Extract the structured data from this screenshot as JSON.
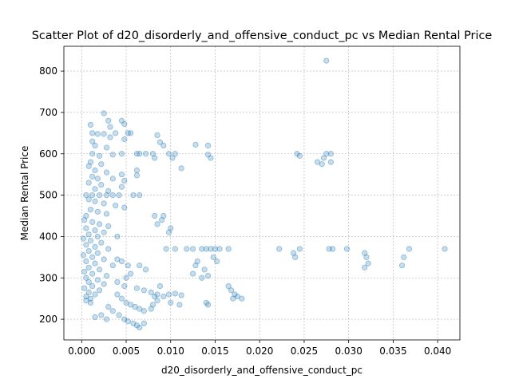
{
  "chart_data": {
    "type": "scatter",
    "title": "Scatter Plot of d20_disorderly_and_offensive_conduct_pc vs Median Rental Price",
    "xlabel": "d20_disorderly_and_offensive_conduct_pc",
    "ylabel": "Median Rental Price",
    "xlim": [
      -0.002,
      0.0425
    ],
    "ylim": [
      150,
      860
    ],
    "xticks": [
      0.0,
      0.005,
      0.01,
      0.015,
      0.02,
      0.025,
      0.03,
      0.035,
      0.04
    ],
    "xtick_labels": [
      "0.000",
      "0.005",
      "0.010",
      "0.015",
      "0.020",
      "0.025",
      "0.030",
      "0.035",
      "0.040"
    ],
    "yticks": [
      200,
      300,
      400,
      500,
      600,
      700,
      800
    ],
    "ytick_labels": [
      "200",
      "300",
      "400",
      "500",
      "600",
      "700",
      "800"
    ],
    "grid": true,
    "marker_color": "#1f77b4",
    "marker_alpha": 0.25,
    "points": [
      [
        0.0275,
        825
      ],
      [
        0.0025,
        698
      ],
      [
        0.003,
        680
      ],
      [
        0.0045,
        680
      ],
      [
        0.0048,
        672
      ],
      [
        0.001,
        670
      ],
      [
        0.0032,
        665
      ],
      [
        0.0012,
        650
      ],
      [
        0.0018,
        648
      ],
      [
        0.0025,
        648
      ],
      [
        0.0038,
        650
      ],
      [
        0.0052,
        650
      ],
      [
        0.0055,
        650
      ],
      [
        0.0085,
        645
      ],
      [
        0.0032,
        640
      ],
      [
        0.0048,
        635
      ],
      [
        0.0012,
        630
      ],
      [
        0.0088,
        628
      ],
      [
        0.0092,
        620
      ],
      [
        0.0015,
        620
      ],
      [
        0.0028,
        615
      ],
      [
        0.0128,
        622
      ],
      [
        0.0142,
        620
      ],
      [
        0.0062,
        600
      ],
      [
        0.0065,
        600
      ],
      [
        0.0072,
        600
      ],
      [
        0.008,
        600
      ],
      [
        0.0098,
        600
      ],
      [
        0.0105,
        600
      ],
      [
        0.0142,
        598
      ],
      [
        0.0045,
        600
      ],
      [
        0.0035,
        598
      ],
      [
        0.0012,
        600
      ],
      [
        0.002,
        595
      ],
      [
        0.0102,
        590
      ],
      [
        0.0145,
        590
      ],
      [
        0.0082,
        590
      ],
      [
        0.0112,
        565
      ],
      [
        0.0242,
        600
      ],
      [
        0.0245,
        595
      ],
      [
        0.0265,
        580
      ],
      [
        0.027,
        575
      ],
      [
        0.0272,
        590
      ],
      [
        0.0275,
        600
      ],
      [
        0.028,
        600
      ],
      [
        0.028,
        580
      ],
      [
        0.001,
        580
      ],
      [
        0.0022,
        575
      ],
      [
        0.0008,
        570
      ],
      [
        0.0015,
        560
      ],
      [
        0.0062,
        560
      ],
      [
        0.0028,
        555
      ],
      [
        0.0045,
        550
      ],
      [
        0.0062,
        548
      ],
      [
        0.0012,
        545
      ],
      [
        0.0018,
        540
      ],
      [
        0.0035,
        540
      ],
      [
        0.0048,
        535
      ],
      [
        0.0008,
        530
      ],
      [
        0.0022,
        525
      ],
      [
        0.0045,
        520
      ],
      [
        0.0015,
        515
      ],
      [
        0.003,
        510
      ],
      [
        0.0005,
        500
      ],
      [
        0.0012,
        500
      ],
      [
        0.002,
        500
      ],
      [
        0.0028,
        500
      ],
      [
        0.0035,
        500
      ],
      [
        0.0042,
        500
      ],
      [
        0.0058,
        500
      ],
      [
        0.0065,
        500
      ],
      [
        0.0008,
        490
      ],
      [
        0.0015,
        485
      ],
      [
        0.0025,
        480
      ],
      [
        0.0038,
        475
      ],
      [
        0.0048,
        470
      ],
      [
        0.001,
        465
      ],
      [
        0.0018,
        460
      ],
      [
        0.0028,
        455
      ],
      [
        0.0005,
        450
      ],
      [
        0.0082,
        450
      ],
      [
        0.0092,
        450
      ],
      [
        0.0085,
        430
      ],
      [
        0.009,
        440
      ],
      [
        0.01,
        420
      ],
      [
        0.0098,
        410
      ],
      [
        0.0003,
        440
      ],
      [
        0.0012,
        435
      ],
      [
        0.002,
        430
      ],
      [
        0.003,
        425
      ],
      [
        0.0005,
        420
      ],
      [
        0.0015,
        415
      ],
      [
        0.0025,
        410
      ],
      [
        0.0008,
        405
      ],
      [
        0.0018,
        400
      ],
      [
        0.004,
        400
      ],
      [
        0.0002,
        395
      ],
      [
        0.001,
        390
      ],
      [
        0.0022,
        385
      ],
      [
        0.0005,
        380
      ],
      [
        0.0015,
        375
      ],
      [
        0.003,
        370
      ],
      [
        0.0008,
        365
      ],
      [
        0.0018,
        360
      ],
      [
        0.0002,
        355
      ],
      [
        0.0012,
        350
      ],
      [
        0.0025,
        345
      ],
      [
        0.0005,
        340
      ],
      [
        0.0015,
        335
      ],
      [
        0.0035,
        330
      ],
      [
        0.0008,
        325
      ],
      [
        0.002,
        320
      ],
      [
        0.0003,
        315
      ],
      [
        0.0012,
        310
      ],
      [
        0.0028,
        305
      ],
      [
        0.0005,
        300
      ],
      [
        0.0018,
        295
      ],
      [
        0.0008,
        290
      ],
      [
        0.0025,
        285
      ],
      [
        0.0012,
        280
      ],
      [
        0.0003,
        275
      ],
      [
        0.002,
        270
      ],
      [
        0.0008,
        265
      ],
      [
        0.0015,
        260
      ],
      [
        0.0005,
        255
      ],
      [
        0.001,
        250
      ],
      [
        0.0095,
        370
      ],
      [
        0.0105,
        370
      ],
      [
        0.0118,
        370
      ],
      [
        0.0125,
        370
      ],
      [
        0.0135,
        370
      ],
      [
        0.014,
        370
      ],
      [
        0.0145,
        370
      ],
      [
        0.015,
        370
      ],
      [
        0.0155,
        370
      ],
      [
        0.0165,
        370
      ],
      [
        0.0148,
        350
      ],
      [
        0.0152,
        340
      ],
      [
        0.013,
        340
      ],
      [
        0.0128,
        330
      ],
      [
        0.0138,
        320
      ],
      [
        0.0125,
        310
      ],
      [
        0.0142,
        305
      ],
      [
        0.0135,
        300
      ],
      [
        0.0222,
        370
      ],
      [
        0.0238,
        360
      ],
      [
        0.024,
        350
      ],
      [
        0.0245,
        370
      ],
      [
        0.0278,
        370
      ],
      [
        0.0282,
        370
      ],
      [
        0.0298,
        370
      ],
      [
        0.0318,
        360
      ],
      [
        0.032,
        350
      ],
      [
        0.0322,
        335
      ],
      [
        0.0318,
        325
      ],
      [
        0.0362,
        350
      ],
      [
        0.036,
        330
      ],
      [
        0.0368,
        370
      ],
      [
        0.0408,
        370
      ],
      [
        0.004,
        345
      ],
      [
        0.0045,
        340
      ],
      [
        0.0052,
        330
      ],
      [
        0.0065,
        330
      ],
      [
        0.0072,
        320
      ],
      [
        0.0055,
        310
      ],
      [
        0.005,
        300
      ],
      [
        0.004,
        290
      ],
      [
        0.0048,
        280
      ],
      [
        0.0062,
        275
      ],
      [
        0.007,
        270
      ],
      [
        0.0078,
        265
      ],
      [
        0.0085,
        260
      ],
      [
        0.0092,
        255
      ],
      [
        0.0098,
        260
      ],
      [
        0.0105,
        262
      ],
      [
        0.0112,
        258
      ],
      [
        0.0088,
        280
      ],
      [
        0.01,
        240
      ],
      [
        0.011,
        235
      ],
      [
        0.014,
        240
      ],
      [
        0.0142,
        235
      ],
      [
        0.0165,
        280
      ],
      [
        0.0168,
        270
      ],
      [
        0.0172,
        260
      ],
      [
        0.0175,
        255
      ],
      [
        0.018,
        250
      ],
      [
        0.017,
        250
      ],
      [
        0.004,
        260
      ],
      [
        0.0045,
        250
      ],
      [
        0.005,
        240
      ],
      [
        0.0055,
        235
      ],
      [
        0.006,
        230
      ],
      [
        0.0065,
        225
      ],
      [
        0.007,
        220
      ],
      [
        0.0035,
        220
      ],
      [
        0.0042,
        210
      ],
      [
        0.0048,
        200
      ],
      [
        0.0052,
        195
      ],
      [
        0.0058,
        190
      ],
      [
        0.0062,
        185
      ],
      [
        0.0065,
        180
      ],
      [
        0.007,
        190
      ],
      [
        0.0028,
        200
      ],
      [
        0.0015,
        205
      ],
      [
        0.0022,
        210
      ],
      [
        0.003,
        230
      ],
      [
        0.001,
        240
      ],
      [
        0.0005,
        245
      ],
      [
        0.0085,
        245
      ],
      [
        0.008,
        235
      ],
      [
        0.0078,
        225
      ],
      [
        0.0082,
        255
      ]
    ]
  }
}
